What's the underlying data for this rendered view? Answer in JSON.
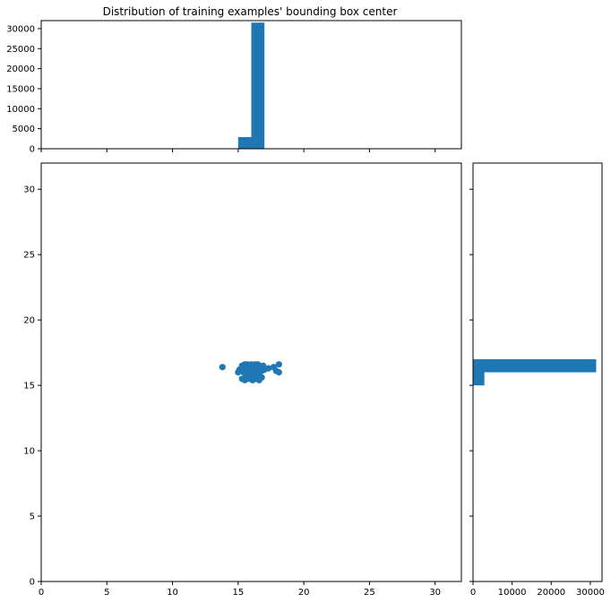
{
  "chart_data": {
    "type": "scatter",
    "title": "Distribution of training examples' bounding box center",
    "xlabel": "",
    "ylabel": "",
    "grid": false,
    "color": "#1f77b4",
    "scatter": {
      "xlim": [
        0,
        32
      ],
      "ylim": [
        0,
        32
      ],
      "xticks": [
        0,
        5,
        10,
        15,
        20,
        25,
        30
      ],
      "yticks": [
        0,
        5,
        10,
        15,
        20,
        25,
        30
      ],
      "points": [
        [
          13.8,
          16.4
        ],
        [
          15.0,
          16.0
        ],
        [
          15.1,
          16.2
        ],
        [
          15.3,
          16.5
        ],
        [
          15.3,
          15.5
        ],
        [
          15.4,
          16.0
        ],
        [
          15.5,
          16.6
        ],
        [
          15.5,
          15.4
        ],
        [
          15.6,
          15.8
        ],
        [
          15.6,
          16.3
        ],
        [
          15.7,
          16.6
        ],
        [
          15.7,
          15.5
        ],
        [
          15.8,
          16.0
        ],
        [
          15.9,
          16.4
        ],
        [
          16.0,
          15.6
        ],
        [
          16.0,
          16.6
        ],
        [
          16.1,
          16.1
        ],
        [
          16.1,
          15.4
        ],
        [
          16.2,
          16.4
        ],
        [
          16.2,
          15.8
        ],
        [
          16.3,
          16.6
        ],
        [
          16.4,
          15.5
        ],
        [
          16.4,
          16.2
        ],
        [
          16.5,
          16.0
        ],
        [
          16.5,
          16.6
        ],
        [
          16.6,
          15.4
        ],
        [
          16.6,
          15.8
        ],
        [
          16.7,
          16.4
        ],
        [
          16.8,
          16.1
        ],
        [
          16.8,
          15.6
        ],
        [
          17.0,
          16.2
        ],
        [
          17.3,
          16.3
        ],
        [
          17.7,
          16.4
        ],
        [
          17.9,
          16.1
        ],
        [
          18.1,
          16.6
        ],
        [
          18.1,
          16.0
        ],
        [
          15.9,
          15.5
        ],
        [
          16.3,
          15.9
        ],
        [
          15.4,
          16.4
        ],
        [
          16.9,
          16.5
        ]
      ]
    },
    "hist_x": {
      "xlim": [
        0,
        32
      ],
      "ylim": [
        0,
        32000
      ],
      "yticks": [
        0,
        5000,
        10000,
        15000,
        20000,
        25000,
        30000
      ],
      "bins": [
        [
          15.0,
          16.0,
          2900
        ],
        [
          16.0,
          17.0,
          31500
        ]
      ]
    },
    "hist_y": {
      "ylim": [
        0,
        32
      ],
      "xlim": [
        0,
        33000
      ],
      "xticks": [
        0,
        10000,
        20000,
        30000
      ],
      "bins": [
        [
          15.0,
          16.0,
          2900
        ],
        [
          16.0,
          17.0,
          31500
        ]
      ]
    }
  }
}
